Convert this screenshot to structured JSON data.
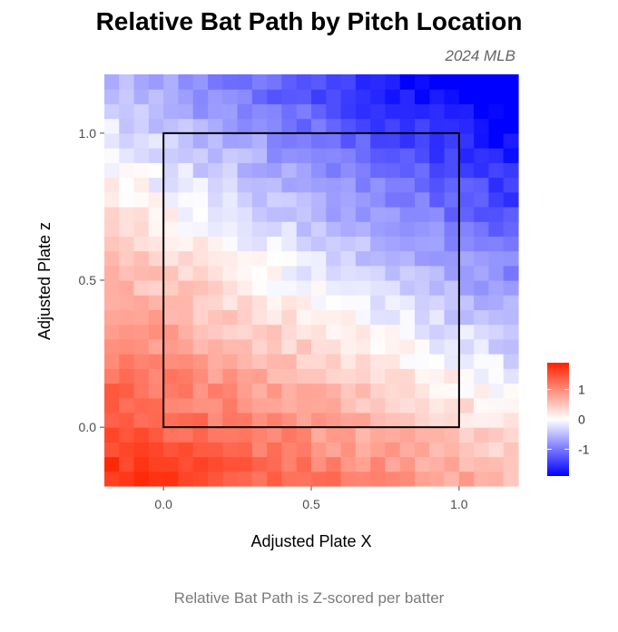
{
  "chart_data": {
    "type": "heatmap",
    "title": "Relative Bat Path by Pitch Location",
    "subtitle": "2024 MLB",
    "caption": "Relative Bat Path is Z-scored per batter",
    "xlabel": "Adjusted Plate X",
    "ylabel": "Adjusted Plate z",
    "xlim": [
      -0.2,
      1.2
    ],
    "ylim": [
      -0.2,
      1.2
    ],
    "x_ticks": [
      {
        "value": 0.0,
        "label": "0.0"
      },
      {
        "value": 0.5,
        "label": "0.5"
      },
      {
        "value": 1.0,
        "label": "1.0"
      }
    ],
    "y_ticks": [
      {
        "value": 0.0,
        "label": "0.0"
      },
      {
        "value": 0.5,
        "label": "0.5"
      },
      {
        "value": 1.0,
        "label": "1.0"
      }
    ],
    "strike_zone": {
      "x": [
        0,
        1
      ],
      "z": [
        0,
        1
      ]
    },
    "grid": false,
    "bins": {
      "nx": 28,
      "nz": 28
    },
    "value_model": {
      "description": "approximate z-score surface",
      "intercept": 1.35,
      "coef_x": -0.95,
      "coef_z": -1.75,
      "coef_xz": -0.3
    },
    "color_scale": {
      "low": "#0000ff",
      "mid": "#ffffff",
      "high": "#ff2200",
      "limits": [
        -1.9,
        1.9
      ],
      "ticks": [
        {
          "value": 1,
          "label": "1"
        },
        {
          "value": 0,
          "label": "0"
        },
        {
          "value": -1,
          "label": "-1"
        }
      ]
    }
  }
}
